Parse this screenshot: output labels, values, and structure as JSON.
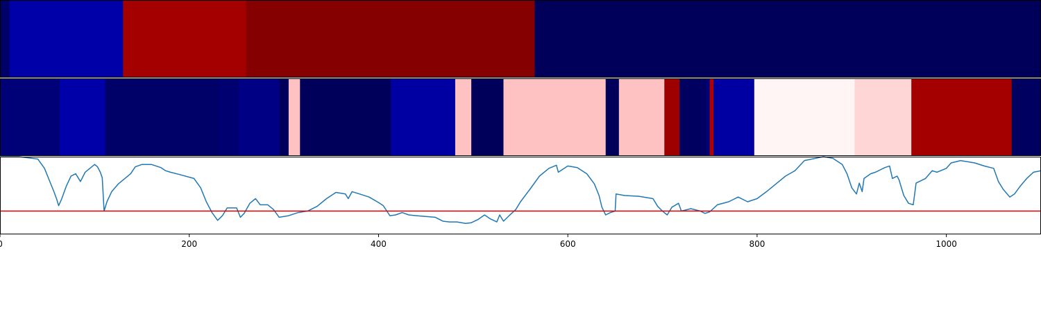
{
  "chart_data": [
    {
      "type": "heatmap",
      "colormap": "seismic",
      "xlim": [
        0,
        1100
      ],
      "segments": [
        {
          "start": 0,
          "end": 10,
          "value": 0.04
        },
        {
          "start": 10,
          "end": 130,
          "value": 0.13
        },
        {
          "start": 130,
          "end": 260,
          "value": 0.93
        },
        {
          "start": 260,
          "end": 565,
          "value": 0.99
        },
        {
          "start": 565,
          "end": 1100,
          "value": 0.02
        }
      ]
    },
    {
      "type": "heatmap",
      "colormap": "seismic",
      "xlim": [
        0,
        1100
      ],
      "segments": [
        {
          "start": 0,
          "end": 63,
          "value": 0.06
        },
        {
          "start": 63,
          "end": 111,
          "value": 0.13
        },
        {
          "start": 111,
          "end": 231,
          "value": 0.04
        },
        {
          "start": 231,
          "end": 252,
          "value": 0.05
        },
        {
          "start": 252,
          "end": 295,
          "value": 0.08
        },
        {
          "start": 295,
          "end": 305,
          "value": 0.02
        },
        {
          "start": 305,
          "end": 317,
          "value": 0.56
        },
        {
          "start": 317,
          "end": 413,
          "value": 0.02
        },
        {
          "start": 413,
          "end": 481,
          "value": 0.12
        },
        {
          "start": 481,
          "end": 498,
          "value": 0.56
        },
        {
          "start": 498,
          "end": 532,
          "value": 0.02
        },
        {
          "start": 532,
          "end": 640,
          "value": 0.56
        },
        {
          "start": 640,
          "end": 654,
          "value": 0.02
        },
        {
          "start": 654,
          "end": 702,
          "value": 0.56
        },
        {
          "start": 702,
          "end": 718,
          "value": 0.94
        },
        {
          "start": 718,
          "end": 746,
          "value": 0.03
        },
        {
          "start": 746,
          "end": 750,
          "value": 0.06
        },
        {
          "start": 750,
          "end": 754,
          "value": 0.9
        },
        {
          "start": 754,
          "end": 797,
          "value": 0.12
        },
        {
          "start": 797,
          "end": 903,
          "value": 0.51
        },
        {
          "start": 903,
          "end": 963,
          "value": 0.54
        },
        {
          "start": 963,
          "end": 1069,
          "value": 0.93
        },
        {
          "start": 1069,
          "end": 1100,
          "value": 0.03
        }
      ]
    },
    {
      "type": "line",
      "xlim": [
        0,
        1100
      ],
      "ylim": [
        0,
        1
      ],
      "xticks": [
        0,
        200,
        400,
        600,
        800,
        1000
      ],
      "grid": false,
      "legend": "none",
      "threshold": 0.3,
      "threshold_color": "#e00000",
      "line_color": "#1f77b4",
      "points": [
        [
          0,
          1.0
        ],
        [
          20,
          1.0
        ],
        [
          40,
          0.97
        ],
        [
          47,
          0.85
        ],
        [
          52,
          0.7
        ],
        [
          57,
          0.55
        ],
        [
          60,
          0.45
        ],
        [
          62,
          0.37
        ],
        [
          65,
          0.45
        ],
        [
          70,
          0.62
        ],
        [
          75,
          0.75
        ],
        [
          80,
          0.78
        ],
        [
          85,
          0.68
        ],
        [
          90,
          0.8
        ],
        [
          95,
          0.85
        ],
        [
          100,
          0.9
        ],
        [
          103,
          0.87
        ],
        [
          106,
          0.8
        ],
        [
          108,
          0.73
        ],
        [
          110,
          0.3
        ],
        [
          113,
          0.42
        ],
        [
          118,
          0.55
        ],
        [
          125,
          0.65
        ],
        [
          132,
          0.72
        ],
        [
          138,
          0.78
        ],
        [
          143,
          0.87
        ],
        [
          150,
          0.9
        ],
        [
          160,
          0.9
        ],
        [
          170,
          0.86
        ],
        [
          175,
          0.82
        ],
        [
          180,
          0.8
        ],
        [
          190,
          0.77
        ],
        [
          205,
          0.72
        ],
        [
          212,
          0.6
        ],
        [
          218,
          0.42
        ],
        [
          224,
          0.28
        ],
        [
          230,
          0.18
        ],
        [
          235,
          0.24
        ],
        [
          240,
          0.34
        ],
        [
          250,
          0.34
        ],
        [
          254,
          0.22
        ],
        [
          258,
          0.27
        ],
        [
          264,
          0.4
        ],
        [
          270,
          0.46
        ],
        [
          275,
          0.38
        ],
        [
          283,
          0.38
        ],
        [
          289,
          0.32
        ],
        [
          295,
          0.22
        ],
        [
          305,
          0.24
        ],
        [
          315,
          0.28
        ],
        [
          325,
          0.3
        ],
        [
          335,
          0.36
        ],
        [
          345,
          0.46
        ],
        [
          355,
          0.54
        ],
        [
          365,
          0.52
        ],
        [
          368,
          0.46
        ],
        [
          372,
          0.55
        ],
        [
          380,
          0.52
        ],
        [
          390,
          0.48
        ],
        [
          400,
          0.41
        ],
        [
          405,
          0.37
        ],
        [
          412,
          0.24
        ],
        [
          418,
          0.25
        ],
        [
          425,
          0.28
        ],
        [
          432,
          0.25
        ],
        [
          440,
          0.24
        ],
        [
          450,
          0.23
        ],
        [
          460,
          0.22
        ],
        [
          468,
          0.17
        ],
        [
          475,
          0.16
        ],
        [
          483,
          0.16
        ],
        [
          492,
          0.14
        ],
        [
          498,
          0.15
        ],
        [
          505,
          0.19
        ],
        [
          512,
          0.25
        ],
        [
          518,
          0.2
        ],
        [
          525,
          0.16
        ],
        [
          528,
          0.25
        ],
        [
          532,
          0.17
        ],
        [
          538,
          0.24
        ],
        [
          545,
          0.32
        ],
        [
          550,
          0.42
        ],
        [
          560,
          0.58
        ],
        [
          570,
          0.75
        ],
        [
          580,
          0.85
        ],
        [
          588,
          0.89
        ],
        [
          590,
          0.8
        ],
        [
          600,
          0.88
        ],
        [
          610,
          0.86
        ],
        [
          620,
          0.78
        ],
        [
          628,
          0.65
        ],
        [
          633,
          0.5
        ],
        [
          636,
          0.35
        ],
        [
          640,
          0.25
        ],
        [
          645,
          0.28
        ],
        [
          650,
          0.3
        ],
        [
          651,
          0.52
        ],
        [
          660,
          0.5
        ],
        [
          675,
          0.49
        ],
        [
          690,
          0.46
        ],
        [
          695,
          0.36
        ],
        [
          700,
          0.3
        ],
        [
          705,
          0.25
        ],
        [
          710,
          0.35
        ],
        [
          717,
          0.4
        ],
        [
          720,
          0.3
        ],
        [
          730,
          0.33
        ],
        [
          740,
          0.3
        ],
        [
          745,
          0.27
        ],
        [
          750,
          0.29
        ],
        [
          758,
          0.38
        ],
        [
          770,
          0.42
        ],
        [
          780,
          0.48
        ],
        [
          790,
          0.42
        ],
        [
          800,
          0.46
        ],
        [
          810,
          0.55
        ],
        [
          820,
          0.65
        ],
        [
          830,
          0.75
        ],
        [
          840,
          0.82
        ],
        [
          850,
          0.95
        ],
        [
          870,
          1.0
        ],
        [
          880,
          0.98
        ],
        [
          890,
          0.9
        ],
        [
          895,
          0.78
        ],
        [
          900,
          0.6
        ],
        [
          905,
          0.52
        ],
        [
          908,
          0.66
        ],
        [
          911,
          0.55
        ],
        [
          913,
          0.72
        ],
        [
          920,
          0.78
        ],
        [
          925,
          0.8
        ],
        [
          935,
          0.86
        ],
        [
          940,
          0.88
        ],
        [
          943,
          0.72
        ],
        [
          948,
          0.75
        ],
        [
          950,
          0.7
        ],
        [
          955,
          0.5
        ],
        [
          960,
          0.4
        ],
        [
          965,
          0.38
        ],
        [
          968,
          0.66
        ],
        [
          978,
          0.72
        ],
        [
          985,
          0.82
        ],
        [
          990,
          0.8
        ],
        [
          1000,
          0.85
        ],
        [
          1005,
          0.92
        ],
        [
          1015,
          0.95
        ],
        [
          1030,
          0.92
        ],
        [
          1040,
          0.88
        ],
        [
          1050,
          0.85
        ],
        [
          1055,
          0.68
        ],
        [
          1060,
          0.58
        ],
        [
          1067,
          0.48
        ],
        [
          1072,
          0.52
        ],
        [
          1078,
          0.62
        ],
        [
          1085,
          0.72
        ],
        [
          1092,
          0.8
        ],
        [
          1100,
          0.82
        ]
      ]
    }
  ]
}
